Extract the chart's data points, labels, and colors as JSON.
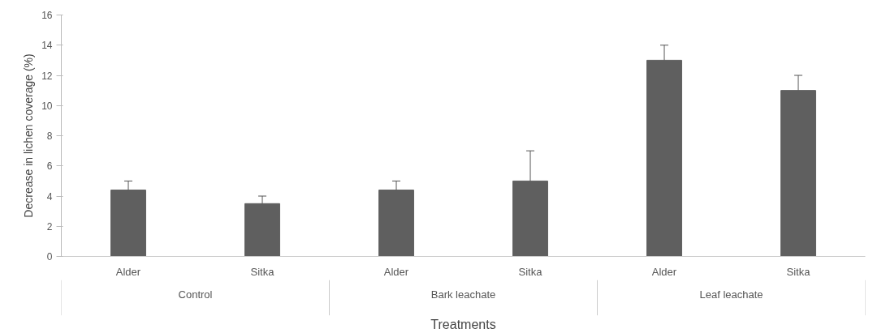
{
  "chart_data": {
    "type": "bar",
    "categories": [
      "Alder",
      "Sitka",
      "Alder",
      "Sitka",
      "Alder",
      "Sitka"
    ],
    "values": [
      4.4,
      3.5,
      4.4,
      5,
      13,
      11
    ],
    "errors": [
      0.6,
      0.5,
      0.6,
      2,
      1,
      1
    ],
    "color": "#5f5f5f",
    "ylim": [
      0,
      16
    ],
    "yticks": [
      0,
      2,
      4,
      6,
      8,
      10,
      12,
      14,
      16
    ],
    "ylabel": "Decrease in lichen coverage (%)",
    "xlabel": "Treatments",
    "annotations": [
      "Control",
      "Bark leachate",
      "Leaf leachate"
    ]
  }
}
